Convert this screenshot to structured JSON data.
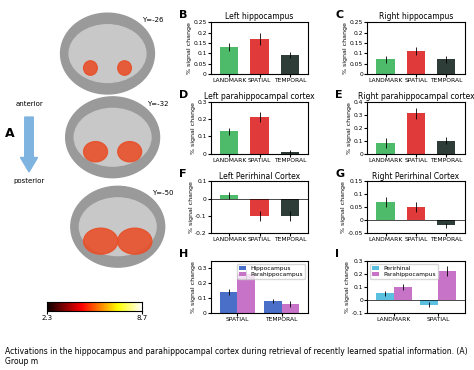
{
  "chart_data": [
    {
      "type": "bar",
      "annotation": "B",
      "title": "Left hippocampus",
      "y_label": "% signal change",
      "categories": [
        "LANDMARK",
        "SPATIAL",
        "TEMPORAL"
      ],
      "values": [
        0.13,
        0.17,
        0.09
      ],
      "errors": [
        0.02,
        0.03,
        0.015
      ],
      "colors": [
        "#4dbb6a",
        "#e03a3a",
        "#2f3d38"
      ],
      "ylim": [
        0,
        0.25
      ],
      "yticks": [
        0,
        0.05,
        0.1,
        0.15,
        0.2,
        0.25
      ]
    },
    {
      "type": "bar",
      "annotation": "C",
      "title": "Right hippocampus",
      "y_label": "% signal change",
      "categories": [
        "LANDMARK",
        "SPATIAL",
        "TEMPORAL"
      ],
      "values": [
        0.07,
        0.11,
        0.07
      ],
      "errors": [
        0.015,
        0.02,
        0.015
      ],
      "colors": [
        "#4dbb6a",
        "#e03a3a",
        "#2f3d38"
      ],
      "ylim": [
        0,
        0.25
      ],
      "yticks": [
        0,
        0.05,
        0.1,
        0.15,
        0.2,
        0.25
      ]
    },
    {
      "type": "bar",
      "annotation": "D",
      "title": "Left parahippocampal cortex",
      "y_label": "% signal change",
      "categories": [
        "LANDMARK",
        "SPATIAL",
        "TEMPORAL"
      ],
      "values": [
        0.13,
        0.21,
        0.01
      ],
      "errors": [
        0.02,
        0.03,
        0.01
      ],
      "colors": [
        "#4dbb6a",
        "#e03a3a",
        "#2f3d38"
      ],
      "ylim": [
        0,
        0.3
      ],
      "yticks": [
        0,
        0.1,
        0.2,
        0.3
      ]
    },
    {
      "type": "bar",
      "annotation": "E",
      "title": "Right parahippocampal cortex",
      "y_label": "% signal change",
      "categories": [
        "LANDMARK",
        "SPATIAL",
        "TEMPORAL"
      ],
      "values": [
        0.08,
        0.31,
        0.1
      ],
      "errors": [
        0.04,
        0.04,
        0.03
      ],
      "colors": [
        "#4dbb6a",
        "#e03a3a",
        "#2f3d38"
      ],
      "ylim": [
        0,
        0.4
      ],
      "yticks": [
        0,
        0.1,
        0.2,
        0.3,
        0.4
      ]
    },
    {
      "type": "bar",
      "annotation": "F",
      "title": "Left Perirhinal Cortex",
      "y_label": "% signal change",
      "categories": [
        "LANDMARK",
        "SPATIAL",
        "TEMPORAL"
      ],
      "values": [
        0.02,
        -0.1,
        -0.1
      ],
      "errors": [
        0.02,
        0.03,
        0.03
      ],
      "colors": [
        "#4dbb6a",
        "#e03a3a",
        "#2f3d38"
      ],
      "ylim": [
        -0.2,
        0.1
      ],
      "yticks": [
        -0.2,
        -0.1,
        0,
        0.1
      ]
    },
    {
      "type": "bar",
      "annotation": "G",
      "title": "Right Perirhinal Cortex",
      "y_label": "% signal change",
      "categories": [
        "LANDMARK",
        "SPATIAL",
        "TEMPORAL"
      ],
      "values": [
        0.07,
        0.05,
        -0.02
      ],
      "errors": [
        0.02,
        0.02,
        0.01
      ],
      "colors": [
        "#4dbb6a",
        "#e03a3a",
        "#2f3d38"
      ],
      "ylim": [
        -0.05,
        0.15
      ],
      "yticks": [
        -0.05,
        0,
        0.05,
        0.1,
        0.15
      ]
    },
    {
      "type": "bar",
      "annotation": "H",
      "y_label": "% signal change",
      "categories": [
        "SPATIAL",
        "TEMPORAL"
      ],
      "series": [
        {
          "name": "Hippocampus",
          "color": "#4a6fc8",
          "values": [
            0.14,
            0.08
          ],
          "errors": [
            0.02,
            0.015
          ]
        },
        {
          "name": "Parahippocampus",
          "color": "#c774c8",
          "values": [
            0.26,
            0.06
          ],
          "errors": [
            0.03,
            0.02
          ]
        }
      ],
      "legend": "upper right",
      "ylim": [
        0,
        0.35
      ],
      "yticks": [
        0,
        0.1,
        0.2,
        0.3
      ]
    },
    {
      "type": "bar",
      "annotation": "I",
      "y_label": "% signal change",
      "categories": [
        "LANDMARK",
        "SPATIAL"
      ],
      "series": [
        {
          "name": "Perirhinal",
          "color": "#5bc0e0",
          "values": [
            0.05,
            -0.04
          ],
          "errors": [
            0.02,
            0.02
          ]
        },
        {
          "name": "Parahippocampus",
          "color": "#c774c8",
          "values": [
            0.1,
            0.22
          ],
          "errors": [
            0.025,
            0.04
          ]
        }
      ],
      "legend": "upper left",
      "ylim": [
        -0.1,
        0.3
      ],
      "yticks": [
        -0.1,
        0,
        0.1,
        0.2,
        0.3
      ]
    }
  ],
  "panel_a": {
    "annotation": "A",
    "slices": [
      "Y=-26",
      "Y=-32",
      "Y=-50"
    ],
    "arrow_top": "anterior",
    "arrow_bottom": "posterior",
    "colorbar": {
      "range": [
        2.3,
        8.7
      ],
      "ticks": [
        2.3,
        8.7
      ]
    }
  },
  "caption": "Activations in the hippocampus and parahippocampal cortex during retrieval of recently learned spatial information. (A) Group m"
}
